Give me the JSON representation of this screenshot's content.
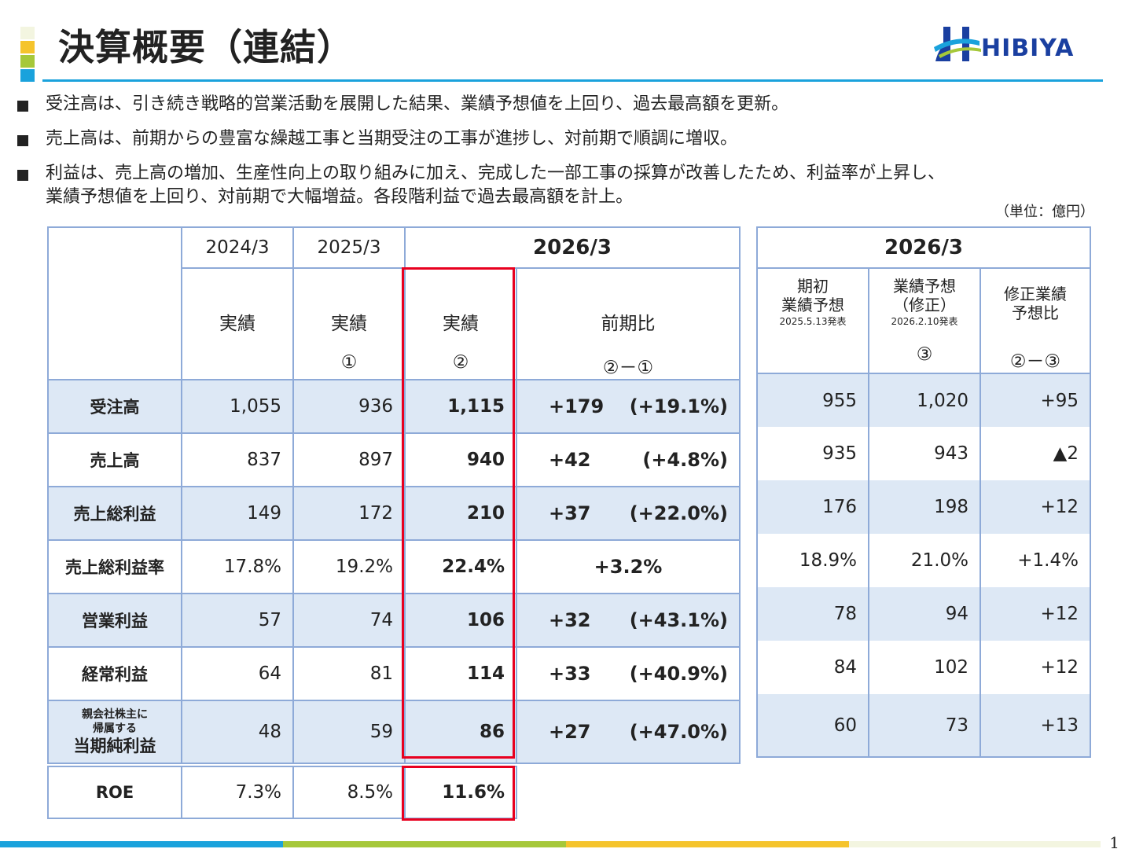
{
  "title": "決算概要（連結）",
  "logo": {
    "text": "HIBIYA"
  },
  "colors": {
    "accent_blue": "#1aa2dc",
    "accent_green": "#a6c83a",
    "accent_yellow": "#f5c42c",
    "accent_cream": "#f3f5e0",
    "table_border": "#8eaad8",
    "row_shade": "#dde8f5",
    "highlight_red": "#e8001f",
    "logo_blue": "#1a3fa0"
  },
  "bullets": [
    "受注高は、引き続き戦略的営業活動を展開した結果、業績予想値を上回り、過去最高額を更新。",
    "売上高は、前期からの豊富な繰越工事と当期受注の工事が進捗し、対前期で順調に増収。",
    "利益は、売上高の増加、生産性向上の取り組みに加え、完成した一部工事の採算が改善したため、利益率が上昇し、",
    "業績予想値を上回り、対前期で大幅増益。各段階利益で過去最高額を計上。"
  ],
  "unit": "（単位：億円）",
  "main_table": {
    "years": [
      "2024/3",
      "2025/3",
      "2026/3"
    ],
    "sub": {
      "c1": "実績",
      "c2": "実績",
      "c2_mark": "①",
      "c3": "実績",
      "c3_mark": "②",
      "c4": "前期比",
      "c4_mark": "②－①"
    }
  },
  "forecast_table": {
    "year": "2026/3",
    "h1": [
      "期初",
      "業績予想"
    ],
    "h1_date": "2025.5.13発表",
    "h2": [
      "業績予想",
      "（修正）"
    ],
    "h2_date": "2026.2.10発表",
    "h2_mark": "③",
    "h3": [
      "修正業績",
      "予想比"
    ],
    "h3_mark": "②－③"
  },
  "rows": [
    {
      "label": "受注高",
      "y2024": "1,055",
      "y2025": "936",
      "y2026": "1,115",
      "diff": "+179",
      "diff_pct": "(+19.1%)",
      "f_initial": "955",
      "f_revised": "1,020",
      "f_diff": "+95"
    },
    {
      "label": "売上高",
      "y2024": "837",
      "y2025": "897",
      "y2026": "940",
      "diff": "+42",
      "diff_pct": "(+4.8%)",
      "f_initial": "935",
      "f_revised": "943",
      "f_diff": "▲2"
    },
    {
      "label": "売上総利益",
      "y2024": "149",
      "y2025": "172",
      "y2026": "210",
      "diff": "+37",
      "diff_pct": "(+22.0%)",
      "f_initial": "176",
      "f_revised": "198",
      "f_diff": "+12"
    },
    {
      "label": "売上総利益率",
      "y2024": "17.8%",
      "y2025": "19.2%",
      "y2026": "22.4%",
      "diff": "+3.2%",
      "diff_pct": "",
      "f_initial": "18.9%",
      "f_revised": "21.0%",
      "f_diff": "+1.4%"
    },
    {
      "label": "営業利益",
      "y2024": "57",
      "y2025": "74",
      "y2026": "106",
      "diff": "+32",
      "diff_pct": "(+43.1%)",
      "f_initial": "78",
      "f_revised": "94",
      "f_diff": "+12"
    },
    {
      "label": "経常利益",
      "y2024": "64",
      "y2025": "81",
      "y2026": "114",
      "diff": "+33",
      "diff_pct": "(+40.9%)",
      "f_initial": "84",
      "f_revised": "102",
      "f_diff": "+12"
    },
    {
      "label_small1": "親会社株主に",
      "label_small2": "帰属する",
      "label": "当期純利益",
      "y2024": "48",
      "y2025": "59",
      "y2026": "86",
      "diff": "+27",
      "diff_pct": "(+47.0%)",
      "f_initial": "60",
      "f_revised": "73",
      "f_diff": "+13"
    }
  ],
  "roe": {
    "label": "ROE",
    "y2024": "7.3%",
    "y2025": "8.5%",
    "y2026": "11.6%"
  },
  "page_number": "1"
}
